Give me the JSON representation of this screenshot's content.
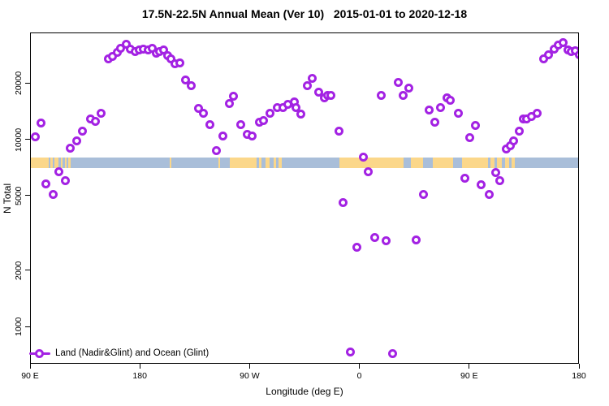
{
  "chart_data": {
    "type": "scatter",
    "title": "17.5N-22.5N Annual Mean (Ver 10)   2015-01-01 to 2020-12-18",
    "xlabel": "Longitude (deg E)",
    "ylabel": "N Total",
    "grid": false,
    "point_color": "#a322e3",
    "x_axis": {
      "span_deg": 450,
      "ticks_deg": [
        0,
        90,
        180,
        270,
        360,
        450
      ],
      "tick_labels": [
        "90 E",
        "180",
        "90 W",
        "0",
        "90 E",
        "180"
      ],
      "note": "longitude axis runs eastward from 90E through 180, 90W, 0 back to 180 (450 degrees total)"
    },
    "y_axis": {
      "scale": "log",
      "ylim": [
        632,
        37200
      ],
      "ticks": [
        1000,
        2000,
        5000,
        10000,
        20000
      ],
      "tick_labels": [
        "1000",
        "2000",
        "5000",
        "10000",
        "20000"
      ]
    },
    "legend": {
      "label": "Land (Nadir&Glint) and Ocean (Glint)",
      "marker": "open-circle-on-line",
      "color": "#a322e3",
      "position": "bottom-left-inside"
    },
    "map_strip": {
      "description": "coastline strip across plot showing ocean/land of the 17.5N-22.5N zone",
      "ocean_color": "#a9bed9",
      "land_color": "#fbd78a",
      "y_top_value": 8000,
      "y_bottom_value": 7000,
      "land_segments_deg": [
        [
          0,
          15.5
        ],
        [
          16.5,
          18.5
        ],
        [
          20,
          23.5
        ],
        [
          25,
          26.5
        ],
        [
          28.5,
          30
        ],
        [
          31.5,
          33.5
        ],
        [
          114.5,
          116
        ],
        [
          154.5,
          156
        ],
        [
          163.5,
          185.5
        ],
        [
          187.5,
          190
        ],
        [
          193,
          196.5
        ],
        [
          199.5,
          201.5
        ],
        [
          204,
          206.5
        ],
        [
          253.5,
          306
        ],
        [
          312,
          322
        ],
        [
          330,
          346.5
        ],
        [
          354,
          375.5
        ],
        [
          377.5,
          380.5
        ],
        [
          383,
          386.5
        ],
        [
          389.5,
          392.5
        ],
        [
          395,
          397.5
        ]
      ]
    },
    "points": [
      [
        4.0,
        10300
      ],
      [
        8.7,
        12200
      ],
      [
        13.3,
        5800
      ],
      [
        18.7,
        5090
      ],
      [
        23.3,
        6740
      ],
      [
        28.7,
        6040
      ],
      [
        32.7,
        9000
      ],
      [
        38.0,
        9850
      ],
      [
        42.7,
        11000
      ],
      [
        49.3,
        12900
      ],
      [
        53.3,
        12500
      ],
      [
        58.0,
        13800
      ],
      [
        64.0,
        26800
      ],
      [
        67.3,
        27800
      ],
      [
        71.3,
        29000
      ],
      [
        74.0,
        30500
      ],
      [
        78.7,
        32300
      ],
      [
        82.0,
        30200
      ],
      [
        86.0,
        29300
      ],
      [
        89.3,
        29900
      ],
      [
        92.7,
        30200
      ],
      [
        96.7,
        29900
      ],
      [
        100.0,
        30500
      ],
      [
        103.3,
        28700
      ],
      [
        106.0,
        29300
      ],
      [
        109.3,
        29900
      ],
      [
        112.7,
        28100
      ],
      [
        115.3,
        26900
      ],
      [
        118.7,
        25400
      ],
      [
        122.7,
        25700
      ],
      [
        127.3,
        20800
      ],
      [
        132.0,
        19300
      ],
      [
        138.0,
        14600
      ],
      [
        142.0,
        13800
      ],
      [
        147.3,
        12000
      ],
      [
        152.7,
        8730
      ],
      [
        158.0,
        10400
      ],
      [
        163.3,
        15600
      ],
      [
        166.7,
        16900
      ],
      [
        172.7,
        12000
      ],
      [
        178.0,
        10600
      ],
      [
        182.0,
        10400
      ],
      [
        188.0,
        12300
      ],
      [
        191.3,
        12600
      ],
      [
        196.7,
        13800
      ],
      [
        202.7,
        14700
      ],
      [
        207.3,
        14700
      ],
      [
        211.3,
        15400
      ],
      [
        216.7,
        15800
      ],
      [
        218.0,
        14800
      ],
      [
        222.0,
        13600
      ],
      [
        227.3,
        19300
      ],
      [
        231.3,
        21100
      ],
      [
        236.7,
        17800
      ],
      [
        241.3,
        16600
      ],
      [
        244.0,
        17200
      ],
      [
        246.7,
        17100
      ],
      [
        253.3,
        11100
      ],
      [
        256.7,
        4570
      ],
      [
        262.7,
        734
      ],
      [
        268.0,
        2640
      ],
      [
        273.3,
        7990
      ],
      [
        277.3,
        6740
      ],
      [
        282.7,
        3000
      ],
      [
        288.0,
        17100
      ],
      [
        292.0,
        2880
      ],
      [
        297.3,
        719
      ],
      [
        302.0,
        20200
      ],
      [
        306.0,
        17200
      ],
      [
        310.7,
        18700
      ],
      [
        316.7,
        2910
      ],
      [
        322.7,
        5090
      ],
      [
        327.3,
        14300
      ],
      [
        332.0,
        12300
      ],
      [
        336.7,
        14800
      ],
      [
        342.0,
        16700
      ],
      [
        344.7,
        16100
      ],
      [
        351.3,
        13800
      ],
      [
        356.7,
        6220
      ],
      [
        360.7,
        10200
      ],
      [
        365.3,
        11900
      ],
      [
        370.0,
        5690
      ],
      [
        376.7,
        5050
      ],
      [
        382.0,
        6610
      ],
      [
        385.3,
        6040
      ],
      [
        390.7,
        8830
      ],
      [
        394.0,
        9190
      ],
      [
        396.7,
        9850
      ],
      [
        401.3,
        11000
      ],
      [
        404.7,
        12800
      ],
      [
        407.3,
        12900
      ],
      [
        411.3,
        13200
      ],
      [
        416.0,
        13800
      ],
      [
        421.3,
        26900
      ],
      [
        425.3,
        28400
      ],
      [
        430.0,
        30200
      ],
      [
        433.3,
        32000
      ],
      [
        436.7,
        32700
      ],
      [
        440.7,
        29900
      ],
      [
        444.0,
        29300
      ],
      [
        447.3,
        29600
      ],
      [
        450.0,
        28400
      ]
    ]
  }
}
